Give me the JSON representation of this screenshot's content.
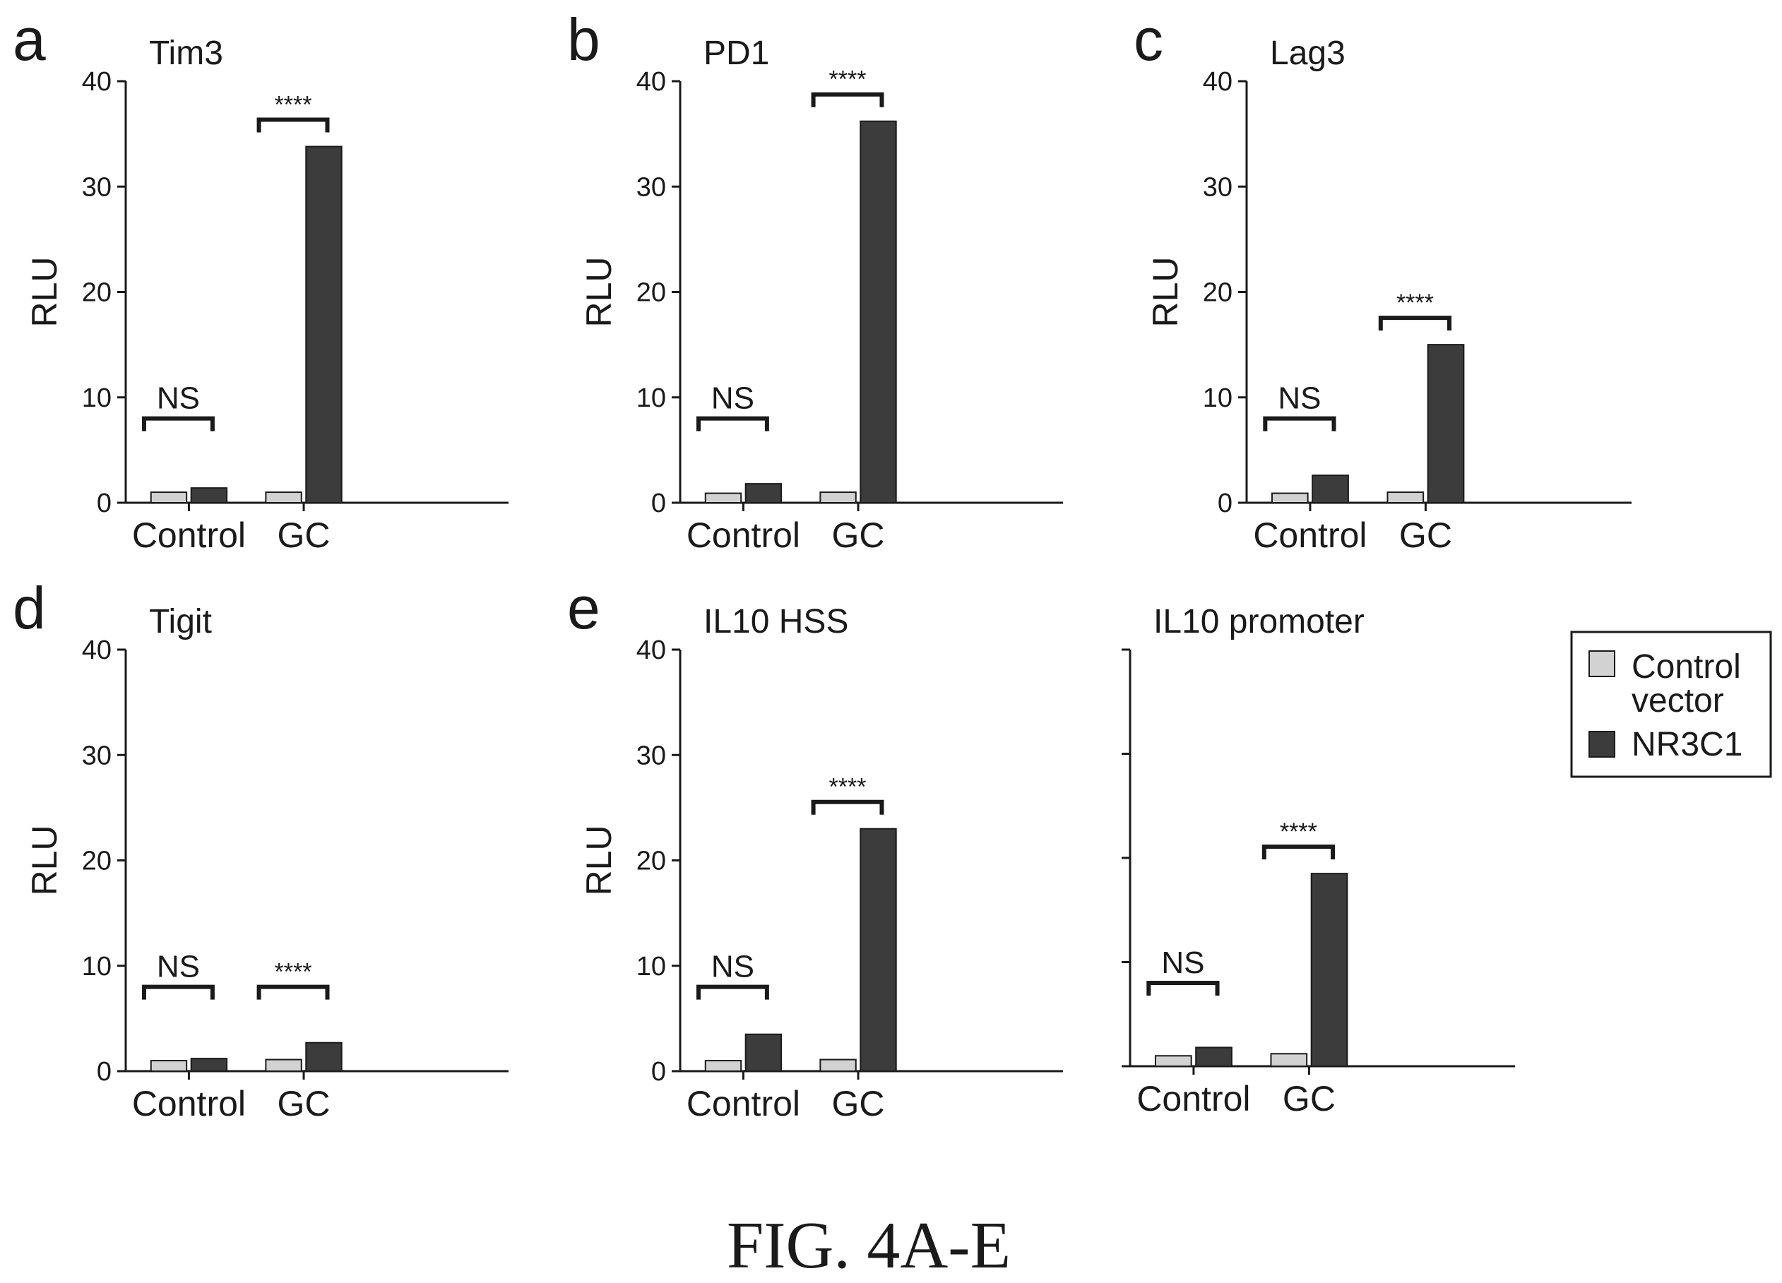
{
  "figure": {
    "caption": "FIG. 4A-E",
    "colors": {
      "control_vector": "#d2d2d2",
      "nr3c1": "#3c3c3c"
    }
  },
  "legend": {
    "position": "right of panel e",
    "items": [
      {
        "lines": [
          "Control",
          "vector"
        ],
        "color": "#d2d2d2"
      },
      {
        "lines": [
          "NR3C1"
        ],
        "color": "#3c3c3c"
      }
    ]
  },
  "chart_data": [
    {
      "type": "bar",
      "panel_letter": "a",
      "title": "Tim3",
      "ylabel": "RLU",
      "ylim": [
        0,
        40
      ],
      "yticks": [
        0,
        10,
        20,
        30,
        40
      ],
      "show_tick_labels": true,
      "categories": [
        "Control",
        "GC"
      ],
      "series": [
        {
          "values": [
            1.0,
            1.4
          ]
        },
        {
          "values": [
            1.0,
            33.8
          ]
        }
      ],
      "annotations": [
        "NS",
        "****"
      ]
    },
    {
      "type": "bar",
      "panel_letter": "b",
      "title": "PD1",
      "ylabel": "RLU",
      "ylim": [
        0,
        40
      ],
      "yticks": [
        0,
        10,
        20,
        30,
        40
      ],
      "show_tick_labels": true,
      "categories": [
        "Control",
        "GC"
      ],
      "series": [
        {
          "values": [
            0.9,
            1.8
          ]
        },
        {
          "values": [
            1.0,
            36.2
          ]
        }
      ],
      "annotations": [
        "NS",
        "****"
      ]
    },
    {
      "type": "bar",
      "panel_letter": "c",
      "title": "Lag3",
      "ylabel": "RLU",
      "ylim": [
        0,
        40
      ],
      "yticks": [
        0,
        10,
        20,
        30,
        40
      ],
      "show_tick_labels": true,
      "categories": [
        "Control",
        "GC"
      ],
      "series": [
        {
          "values": [
            0.9,
            2.6
          ]
        },
        {
          "values": [
            1.0,
            15.0
          ]
        }
      ],
      "annotations": [
        "NS",
        "****"
      ]
    },
    {
      "type": "bar",
      "panel_letter": "d",
      "title": "Tigit",
      "ylabel": "RLU",
      "ylim": [
        0,
        40
      ],
      "yticks": [
        0,
        10,
        20,
        30,
        40
      ],
      "show_tick_labels": true,
      "categories": [
        "Control",
        "GC"
      ],
      "series": [
        {
          "values": [
            1.0,
            1.2
          ]
        },
        {
          "values": [
            1.1,
            2.7
          ]
        }
      ],
      "annotations": [
        "NS",
        "****"
      ]
    },
    {
      "type": "bar",
      "panel_letter": "e",
      "title": "IL10 HSS",
      "ylabel": "RLU",
      "ylim": [
        0,
        40
      ],
      "yticks": [
        0,
        10,
        20,
        30,
        40
      ],
      "show_tick_labels": true,
      "categories": [
        "Control",
        "GC"
      ],
      "series": [
        {
          "values": [
            1.0,
            3.5
          ]
        },
        {
          "values": [
            1.1,
            23.0
          ]
        }
      ],
      "annotations": [
        "NS",
        "****"
      ]
    },
    {
      "type": "bar",
      "panel_letter": "",
      "title": "IL10 promoter",
      "ylabel": "",
      "ylim": [
        0,
        40
      ],
      "yticks": [
        0,
        10,
        20,
        30,
        40
      ],
      "show_tick_labels": false,
      "categories": [
        "Control",
        "GC"
      ],
      "series": [
        {
          "values": [
            1.0,
            1.8
          ]
        },
        {
          "values": [
            1.2,
            18.5
          ]
        }
      ],
      "annotations": [
        "NS",
        "****"
      ]
    }
  ]
}
